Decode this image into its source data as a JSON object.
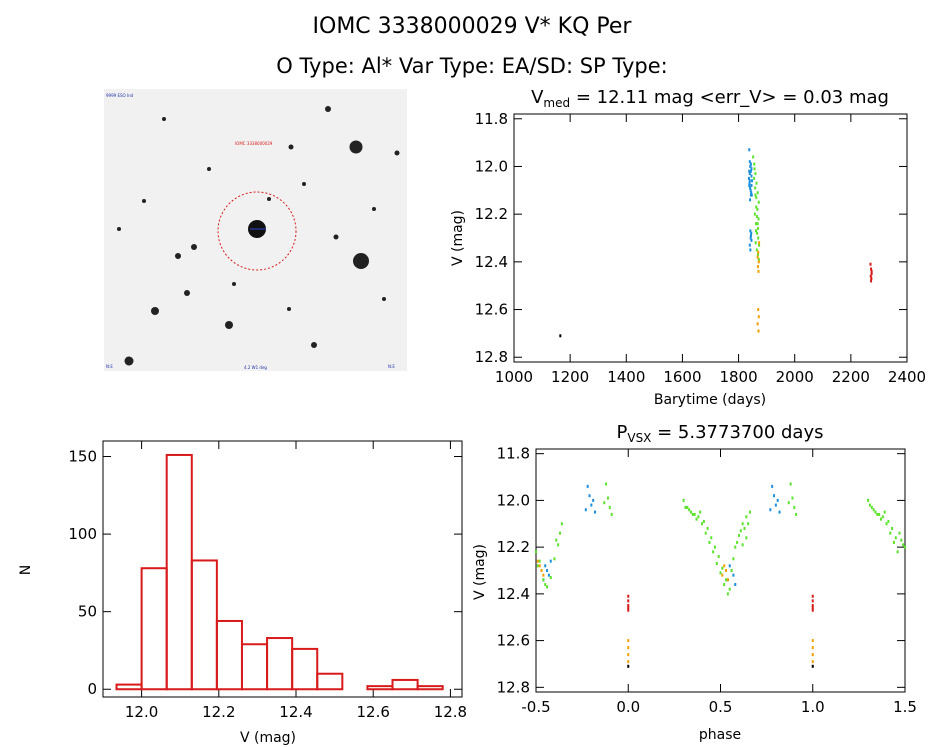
{
  "header": {
    "title": "IOMC 3338000029    V* KQ Per",
    "subtitle": "O Type: Al*  Var Type: EA/SD:  SP Type:"
  },
  "image_panel": {
    "top_left_label": "9999 ESO Ind",
    "target_label": "IOMC 3338000029",
    "bottom_label": "4.2 W1 deg",
    "bottom_left_label": "N:E",
    "bottom_right_label": "N:E"
  },
  "colors": {
    "blue": "#1a8fdc",
    "green": "#5be32b",
    "orange": "#f0a000",
    "red": "#d81a1a",
    "black": "#000000",
    "hist": "#d81a1a"
  },
  "chart_data": [
    {
      "type": "scatter",
      "id": "lightcurve",
      "title_prefix": "V",
      "title_sub": "med",
      "title_rest": " = 12.11 mag <err_V> = 0.03 mag",
      "xlabel": "Barytime (days)",
      "ylabel": "V (mag)",
      "xlim": [
        1000,
        2400
      ],
      "ylim": [
        12.82,
        11.78
      ],
      "xticks": [
        "1000",
        "1200",
        "1400",
        "1600",
        "1800",
        "2000",
        "2200",
        "2400"
      ],
      "yticks": [
        "11.8",
        "12.0",
        "12.2",
        "12.4",
        "12.6",
        "12.8"
      ],
      "series": [
        {
          "name": "black",
          "color": "black",
          "x": [
            1165
          ],
          "y": [
            12.71
          ]
        },
        {
          "name": "blue",
          "color": "blue",
          "x": [
            1838,
            1840,
            1842,
            1844,
            1846,
            1848,
            1837,
            1839,
            1841,
            1843,
            1845,
            1847,
            1838,
            1840,
            1842,
            1844,
            1846,
            1842,
            1844,
            1846,
            1840,
            1843,
            1845,
            1842,
            1841,
            1844,
            1846,
            1838,
            1840
          ],
          "y": [
            11.93,
            11.98,
            12.0,
            12.02,
            12.04,
            12.06,
            12.05,
            12.07,
            12.09,
            12.1,
            12.11,
            12.12,
            12.08,
            12.03,
            12.0,
            11.99,
            12.01,
            12.27,
            12.29,
            12.31,
            12.33,
            12.3,
            12.28,
            12.35,
            12.14,
            12.12,
            12.08,
            12.02,
            12.06
          ]
        },
        {
          "name": "green",
          "color": "green",
          "x": [
            1852,
            1856,
            1860,
            1864,
            1868,
            1872,
            1855,
            1859,
            1863,
            1867,
            1871,
            1858,
            1862,
            1866,
            1870,
            1861,
            1865,
            1869,
            1857,
            1863,
            1869,
            1873,
            1860,
            1866,
            1872,
            1862,
            1868
          ],
          "y": [
            11.96,
            11.99,
            12.03,
            12.07,
            12.11,
            12.15,
            12.05,
            12.09,
            12.13,
            12.18,
            12.22,
            12.2,
            12.24,
            12.28,
            12.3,
            12.32,
            12.35,
            12.37,
            12.01,
            12.17,
            12.26,
            12.33,
            12.12,
            12.21,
            12.39,
            12.27,
            12.24
          ]
        },
        {
          "name": "orange",
          "color": "orange",
          "x": [
            1868,
            1870,
            1872,
            1869,
            1871,
            1873,
            1870,
            1872,
            1868,
            1871
          ],
          "y": [
            12.38,
            12.36,
            12.4,
            12.42,
            12.44,
            12.32,
            12.6,
            12.63,
            12.66,
            12.69
          ]
        },
        {
          "name": "red",
          "color": "red",
          "x": [
            2270,
            2272,
            2274,
            2271,
            2273,
            2272,
            2274
          ],
          "y": [
            12.41,
            12.43,
            12.45,
            12.46,
            12.47,
            12.48,
            12.44
          ]
        }
      ]
    },
    {
      "type": "bar",
      "id": "histogram",
      "xlabel": "V (mag)",
      "ylabel": "N",
      "xlim": [
        11.9,
        12.83
      ],
      "ylim": [
        -5,
        160
      ],
      "xticks": [
        "12.0",
        "12.2",
        "12.4",
        "12.6",
        "12.8"
      ],
      "yticks": [
        "0",
        "50",
        "100",
        "150"
      ],
      "bin_width": 0.065,
      "bins": [
        {
          "left": 11.935,
          "value": 3
        },
        {
          "left": 12.0,
          "value": 78
        },
        {
          "left": 12.065,
          "value": 151
        },
        {
          "left": 12.13,
          "value": 83
        },
        {
          "left": 12.195,
          "value": 44
        },
        {
          "left": 12.26,
          "value": 29
        },
        {
          "left": 12.325,
          "value": 33
        },
        {
          "left": 12.39,
          "value": 26
        },
        {
          "left": 12.455,
          "value": 10
        },
        {
          "left": 12.52,
          "value": 0
        },
        {
          "left": 12.585,
          "value": 2
        },
        {
          "left": 12.65,
          "value": 6
        },
        {
          "left": 12.715,
          "value": 2
        }
      ]
    },
    {
      "type": "scatter",
      "id": "phased",
      "title_prefix": "P",
      "title_sub": "VSX",
      "title_rest": " = 5.3773700 days",
      "xlabel": "phase",
      "ylabel": "V (mag)",
      "xlim": [
        -0.5,
        1.5
      ],
      "ylim": [
        12.82,
        11.78
      ],
      "xticks": [
        "-0.5",
        "0.0",
        "0.5",
        "1.0",
        "1.5"
      ],
      "yticks": [
        "11.8",
        "12.0",
        "12.2",
        "12.4",
        "12.6",
        "12.8"
      ],
      "series": [
        {
          "name": "black",
          "color": "black",
          "x": [
            0.0,
            1.0
          ],
          "y": [
            12.71,
            12.71
          ]
        },
        {
          "name": "blue",
          "color": "blue",
          "x": [
            -0.22,
            -0.21,
            -0.2,
            -0.23,
            -0.19,
            -0.18,
            -0.45,
            -0.44,
            -0.43,
            -0.46,
            0.78,
            0.79,
            0.8,
            0.77,
            0.81,
            0.82,
            0.55,
            0.56,
            0.57,
            0.54,
            0.58,
            -0.42
          ],
          "y": [
            11.94,
            11.98,
            12.02,
            12.04,
            12.0,
            12.05,
            12.28,
            12.3,
            12.32,
            12.34,
            11.94,
            11.98,
            12.02,
            12.04,
            12.0,
            12.05,
            12.28,
            12.3,
            12.32,
            12.34,
            12.36,
            12.26
          ]
        },
        {
          "name": "green",
          "color": "green",
          "x": [
            -0.5,
            -0.48,
            -0.47,
            -0.46,
            -0.44,
            -0.42,
            -0.4,
            -0.38,
            -0.37,
            -0.36,
            -0.12,
            -0.11,
            -0.1,
            -0.09,
            -0.13,
            0.3,
            0.32,
            0.34,
            0.36,
            0.38,
            0.4,
            0.42,
            0.44,
            0.46,
            0.48,
            0.5,
            0.52,
            0.54,
            0.56,
            0.58,
            0.6,
            0.62,
            0.64,
            0.66,
            0.88,
            0.89,
            0.9,
            0.91,
            0.87,
            1.3,
            1.32,
            1.34,
            1.36,
            1.38,
            1.4,
            1.42,
            1.44,
            1.46,
            1.48,
            1.5,
            0.31,
            0.33,
            0.35,
            0.37,
            0.39,
            0.41,
            0.43,
            0.45,
            0.47,
            0.49,
            0.51,
            0.53,
            0.55,
            0.57,
            0.59,
            0.61,
            0.63,
            0.65,
            -0.49,
            -0.45,
            -0.39,
            0.62,
            0.64,
            1.31,
            1.33,
            1.35,
            1.37,
            1.39,
            1.41,
            1.43,
            1.45,
            1.47,
            1.49
          ],
          "y": [
            12.22,
            12.26,
            12.3,
            12.34,
            12.37,
            12.33,
            12.25,
            12.19,
            12.14,
            12.1,
            11.93,
            11.99,
            12.03,
            12.06,
            12.01,
            12.0,
            12.03,
            12.05,
            12.06,
            12.07,
            12.1,
            12.14,
            12.18,
            12.22,
            12.27,
            12.31,
            12.36,
            12.4,
            12.3,
            12.2,
            12.15,
            12.1,
            12.07,
            12.05,
            11.93,
            11.99,
            12.03,
            12.06,
            12.01,
            12.0,
            12.03,
            12.05,
            12.06,
            12.07,
            12.1,
            12.14,
            12.18,
            12.22,
            12.17,
            12.2,
            12.03,
            12.04,
            12.06,
            12.08,
            12.05,
            12.09,
            12.12,
            12.16,
            12.2,
            12.24,
            12.29,
            12.34,
            12.38,
            12.25,
            12.18,
            12.13,
            12.12,
            12.1,
            12.28,
            12.36,
            12.17,
            12.19,
            12.16,
            12.02,
            12.04,
            12.06,
            12.08,
            12.05,
            12.09,
            12.12,
            12.16,
            12.14,
            12.19
          ]
        },
        {
          "name": "orange",
          "color": "orange",
          "x": [
            -0.48,
            -0.47,
            -0.46,
            -0.49,
            0.0,
            0.0,
            0.0,
            0.0,
            0.52,
            0.53,
            0.51,
            0.54,
            1.0,
            1.0,
            1.0,
            1.0
          ],
          "y": [
            12.28,
            12.3,
            12.32,
            12.26,
            12.6,
            12.63,
            12.66,
            12.69,
            12.28,
            12.3,
            12.32,
            12.34,
            12.6,
            12.63,
            12.66,
            12.69
          ]
        },
        {
          "name": "red",
          "color": "red",
          "x": [
            0.0,
            0.0,
            0.0,
            0.0,
            0.0,
            1.0,
            1.0,
            1.0,
            1.0,
            1.0
          ],
          "y": [
            12.41,
            12.43,
            12.45,
            12.46,
            12.47,
            12.41,
            12.43,
            12.45,
            12.46,
            12.47
          ]
        }
      ]
    }
  ]
}
